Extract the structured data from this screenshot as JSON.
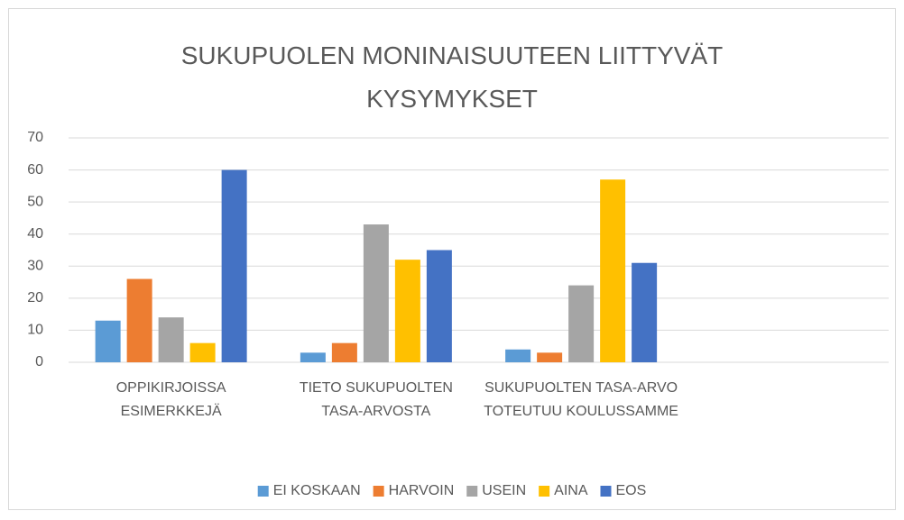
{
  "chart_data": {
    "type": "bar",
    "title": "SUKUPUOLEN MONINAISUUTEEN LIITTYVÄT KYSYMYKSET",
    "categories": [
      "OPPIKIRJOISSA ESIMERKKEJÄ",
      "TIETO SUKUPUOLTEN TASA-ARVOSTA",
      "SUKUPUOLTEN TASA-ARVO TOTEUTUU KOULUSSAMME",
      null
    ],
    "series": [
      {
        "name": "EI KOSKAAN",
        "color": "#5b9bd5",
        "values": [
          13,
          3,
          4,
          null
        ]
      },
      {
        "name": "HARVOIN",
        "color": "#ed7d31",
        "values": [
          26,
          6,
          3,
          null
        ]
      },
      {
        "name": "USEIN",
        "color": "#a5a5a5",
        "values": [
          14,
          43,
          24,
          null
        ]
      },
      {
        "name": "AINA",
        "color": "#ffc000",
        "values": [
          6,
          32,
          57,
          null
        ]
      },
      {
        "name": "EOS",
        "color": "#4472c4",
        "values": [
          60,
          35,
          31,
          null
        ]
      }
    ],
    "ylim": [
      0,
      70
    ],
    "yticks": [
      0,
      10,
      20,
      30,
      40,
      50,
      60,
      70
    ],
    "grid": true,
    "legend": "bottom"
  }
}
